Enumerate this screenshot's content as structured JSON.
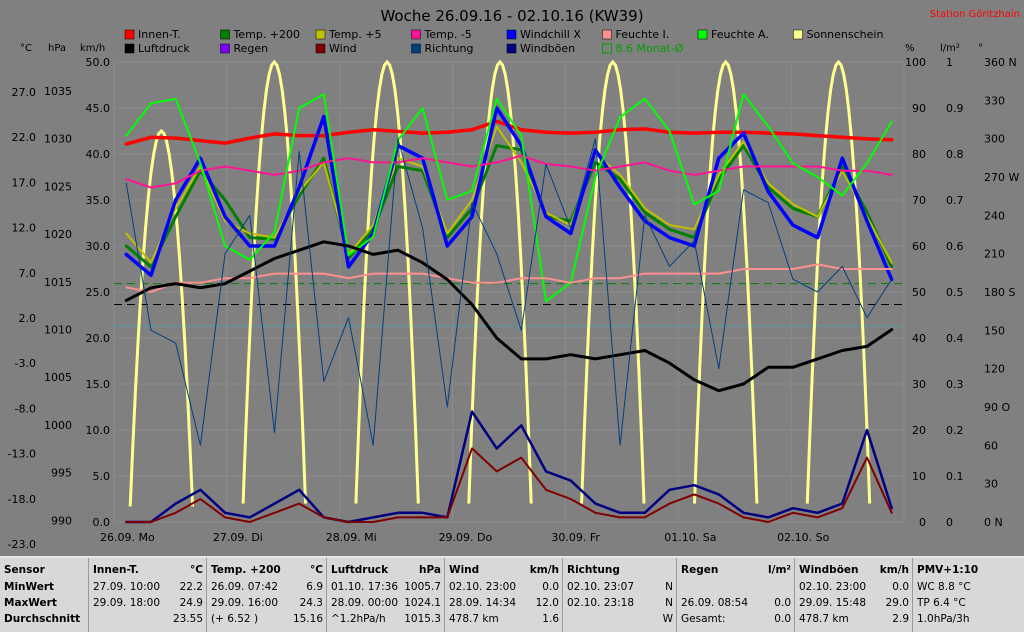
{
  "chart_data": {
    "type": "line",
    "title": "Woche 26.09.16 - 02.10.16 (KW39)",
    "station": "Station Göritzhain",
    "axes_left": {
      "c": [
        "27.0",
        "22.0",
        "17.0",
        "12.0",
        "7.0",
        "2.0",
        "-3.0",
        "-8.0",
        "-13.0",
        "-18.0",
        "-23.0"
      ],
      "hpa": [
        "1035",
        "1030",
        "1025",
        "1020",
        "1015",
        "1010",
        "1005",
        "1000",
        "995",
        "990"
      ],
      "kmh": [
        "50.0",
        "45.0",
        "40.0",
        "35.0",
        "30.0",
        "25.0",
        "20.0",
        "15.0",
        "10.0",
        "5.0",
        "0.0"
      ]
    },
    "axes_right": {
      "pct": [
        "100",
        "90",
        "80",
        "70",
        "60",
        "50",
        "40",
        "30",
        "20",
        "10",
        "0"
      ],
      "lm2": [
        "1",
        "0.9",
        "0.8",
        "0.7",
        "0.6",
        "0.5",
        "0.4",
        "0.3",
        "0.2",
        "0.1",
        "0"
      ],
      "deg": [
        "360 N",
        "330",
        "300",
        "270 W",
        "240",
        "210",
        "180 S",
        "150",
        "120",
        "90 O",
        "60",
        "30",
        "0 N"
      ]
    },
    "units": {
      "c": "°C",
      "hpa": "hPa",
      "kmh": "km/h",
      "pct": "%",
      "lm2": "l/m²",
      "deg": "°"
    },
    "x_labels": [
      "26.09. Mo",
      "27.09. Di",
      "28.09. Mi",
      "29.09. Do",
      "30.09. Fr",
      "01.10. Sa",
      "02.10. So"
    ],
    "legend": [
      {
        "name": "Innen-T.",
        "color": "#ff0000"
      },
      {
        "name": "Temp. +200",
        "color": "#008000"
      },
      {
        "name": "Temp. +5",
        "color": "#c0c000"
      },
      {
        "name": "Temp. -5",
        "color": "#ff1493"
      },
      {
        "name": "Windchill X",
        "color": "#0000ff"
      },
      {
        "name": "Feuchte I.",
        "color": "#ff9090"
      },
      {
        "name": "Feuchte A.",
        "color": "#00ff00"
      },
      {
        "name": "Sonnenschein",
        "color": "#ffff90"
      },
      {
        "name": "Luftdruck",
        "color": "#000000"
      },
      {
        "name": "Regen",
        "color": "#8000ff"
      },
      {
        "name": "Wind",
        "color": "#800000"
      },
      {
        "name": "Richtung",
        "color": "#004080"
      },
      {
        "name": "Windböen",
        "color": "#000080"
      },
      {
        "name": "8.6 Monat-Ø",
        "color": "#00a000"
      }
    ],
    "series": [
      {
        "name": "Innen-T.",
        "axis": "c",
        "values": [
          22.2,
          23.0,
          22.9,
          22.6,
          22.3,
          22.9,
          23.4,
          23.2,
          23.2,
          23.6,
          23.9,
          23.7,
          23.5,
          23.6,
          23.9,
          24.9,
          23.9,
          23.6,
          23.5,
          23.6,
          23.9,
          24.0,
          23.6,
          23.5,
          23.6,
          23.6,
          23.5,
          23.4,
          23.2,
          23.0,
          22.8,
          22.7
        ]
      },
      {
        "name": "Temp. +200",
        "axis": "c",
        "values": [
          10.0,
          7.5,
          13.5,
          19.0,
          15.5,
          11.0,
          10.8,
          16.0,
          20.5,
          8.5,
          12.0,
          19.5,
          19.0,
          11.0,
          14.5,
          22.0,
          21.5,
          13.5,
          13.0,
          20.0,
          18.0,
          14.0,
          12.0,
          11.0,
          18.0,
          22.0,
          17.0,
          14.5,
          13.5,
          19.5,
          14.0,
          7.5
        ]
      },
      {
        "name": "Temp. +5",
        "axis": "c",
        "values": [
          11.5,
          8.0,
          14.5,
          19.5,
          13.0,
          11.5,
          11.0,
          16.5,
          20.0,
          9.0,
          12.5,
          20.5,
          19.5,
          11.5,
          15.5,
          24.3,
          20.0,
          14.0,
          12.5,
          21.0,
          18.5,
          14.5,
          12.5,
          12.0,
          18.5,
          22.5,
          17.5,
          15.0,
          13.5,
          19.0,
          13.5,
          8.0
        ]
      },
      {
        "name": "Windchill X",
        "axis": "c",
        "values": [
          9.0,
          6.5,
          15.5,
          20.5,
          13.5,
          10.0,
          10.0,
          17.0,
          25.5,
          7.5,
          11.5,
          22.0,
          20.5,
          10.0,
          13.5,
          26.5,
          22.0,
          13.5,
          11.5,
          21.5,
          17.0,
          13.0,
          11.0,
          10.0,
          20.5,
          23.5,
          16.5,
          12.5,
          11.0,
          20.5,
          13.0,
          6.0
        ]
      },
      {
        "name": "Temp. -5",
        "axis": "c",
        "values": [
          18.0,
          17.0,
          17.5,
          19.0,
          19.5,
          19.0,
          18.5,
          19.0,
          20.0,
          20.5,
          20.0,
          20.0,
          20.5,
          20.0,
          19.5,
          20.0,
          20.8,
          19.8,
          19.5,
          19.0,
          19.5,
          20.0,
          19.0,
          18.5,
          19.0,
          19.5,
          19.5,
          19.5,
          19.5,
          19.0,
          19.0,
          18.5
        ]
      },
      {
        "name": "Feuchte A.",
        "axis": "pct",
        "values": [
          84,
          91,
          92,
          78,
          60,
          57,
          63,
          90,
          93,
          58,
          62,
          83,
          90,
          70,
          72,
          92,
          84,
          48,
          52,
          75,
          88,
          92,
          85,
          69,
          72,
          93,
          86,
          78,
          75,
          71,
          78,
          87
        ]
      },
      {
        "name": "Feuchte I.",
        "axis": "pct",
        "values": [
          51,
          50,
          52,
          52,
          53,
          53,
          54,
          54,
          54,
          53,
          54,
          54,
          54,
          53,
          52,
          52,
          53,
          53,
          52,
          53,
          53,
          54,
          54,
          54,
          54,
          55,
          55,
          55,
          56,
          55,
          55,
          55
        ]
      },
      {
        "name": "Luftdruck",
        "axis": "hpa",
        "values": [
          1016.5,
          1018.0,
          1018.5,
          1018.0,
          1018.5,
          1020.0,
          1021.5,
          1022.5,
          1023.5,
          1023.0,
          1022.0,
          1022.5,
          1021.0,
          1019.0,
          1016.0,
          1012.0,
          1009.5,
          1009.5,
          1010.0,
          1009.5,
          1010.0,
          1010.5,
          1009.0,
          1007.0,
          1005.7,
          1006.5,
          1008.5,
          1008.5,
          1009.5,
          1010.5,
          1011.0,
          1013.0
        ]
      },
      {
        "name": "Windböen",
        "axis": "kmh",
        "values": [
          0.0,
          0.0,
          2.0,
          3.5,
          1.0,
          0.5,
          2.0,
          3.5,
          0.5,
          0.0,
          0.5,
          1.0,
          1.0,
          0.5,
          12.0,
          8.0,
          10.5,
          5.5,
          4.5,
          2.0,
          1.0,
          1.0,
          3.5,
          4.0,
          3.0,
          1.0,
          0.5,
          1.5,
          1.0,
          2.0,
          10.0,
          1.5
        ]
      },
      {
        "name": "Wind",
        "axis": "kmh",
        "values": [
          0.0,
          0.0,
          1.0,
          2.5,
          0.5,
          0.0,
          1.0,
          2.0,
          0.5,
          0.0,
          0.0,
          0.5,
          0.5,
          0.5,
          8.0,
          5.5,
          7.0,
          3.5,
          2.5,
          1.0,
          0.5,
          0.5,
          2.0,
          3.0,
          2.0,
          0.5,
          0.0,
          1.0,
          0.5,
          1.5,
          7.0,
          1.0
        ]
      },
      {
        "name": "Richtung",
        "axis": "deg",
        "values": [
          265,
          150,
          140,
          60,
          210,
          240,
          70,
          290,
          110,
          160,
          60,
          300,
          230,
          90,
          250,
          210,
          150,
          280,
          230,
          300,
          60,
          240,
          200,
          220,
          120,
          260,
          250,
          190,
          180,
          200,
          160,
          190
        ]
      }
    ],
    "sunshine_days": [
      0.12,
      0.25,
      0.42,
      0.58,
      0.72,
      0.89
    ],
    "dashed_lines": [
      {
        "axis": "c",
        "value": 5.5,
        "color": "#008000"
      },
      {
        "axis": "c",
        "value": 3.0,
        "color": "#000000"
      }
    ]
  },
  "stats": {
    "cols": [
      {
        "h": "Sensor",
        "u": "",
        "r": [
          "MinWert",
          "MaxWert",
          "Durchschnitt"
        ],
        "vals": []
      },
      {
        "h": "Innen-T.",
        "u": "°C",
        "r": [
          "27.09.  10:00",
          "29.09.  18:00",
          ""
        ],
        "vals": [
          "22.2",
          "24.9",
          "23.55"
        ]
      },
      {
        "h": "Temp. +200",
        "u": "°C",
        "r": [
          "26.09.  07:42",
          "29.09.  16:00",
          "(+ 6.52 )"
        ],
        "vals": [
          "6.9",
          "24.3",
          "15.16"
        ]
      },
      {
        "h": "Luftdruck",
        "u": "hPa",
        "r": [
          "01.10.  17:36",
          "28.09.  00:00",
          "^1.2hPa/h"
        ],
        "vals": [
          "1005.7",
          "1024.1",
          "1015.3"
        ]
      },
      {
        "h": "Wind",
        "u": "km/h",
        "r": [
          "02.10.  23:00",
          "28.09.  14:34",
          "478.7 km"
        ],
        "vals": [
          "0.0",
          "12.0",
          "1.6"
        ]
      },
      {
        "h": "Richtung",
        "u": "",
        "r": [
          "02.10.  23:07",
          "02.10.  23:18",
          ""
        ],
        "vals": [
          "N",
          "N",
          "W"
        ]
      },
      {
        "h": "Regen",
        "u": "l/m²",
        "r": [
          "",
          "26.09.  08:54",
          "Gesamt:"
        ],
        "vals": [
          "",
          "0.0",
          "0.0"
        ]
      },
      {
        "h": "Windböen",
        "u": "km/h",
        "r": [
          "02.10.  23:00",
          "29.09.  15:48",
          "478.7 km"
        ],
        "vals": [
          "0.0",
          "29.0",
          "2.9"
        ]
      },
      {
        "h": "PMV+1:10",
        "u": "",
        "r": [
          "WC 8.8 °C",
          "TP 6.4 °C",
          "1.0hPa/3h"
        ],
        "vals": []
      }
    ]
  }
}
